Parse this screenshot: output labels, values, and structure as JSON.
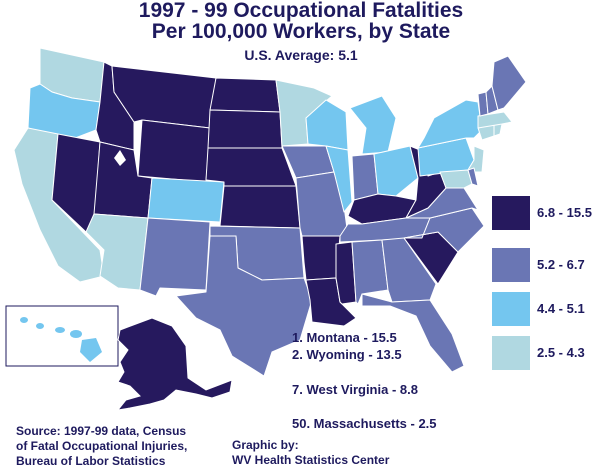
{
  "title_line1": "1997 - 99 Occupational Fatalities",
  "title_line2": "Per 100,000 Workers, by State",
  "us_average": "U.S. Average: 5.1",
  "legend": [
    {
      "label": "6.8 - 15.5",
      "color": "#26195e"
    },
    {
      "label": "5.2 - 6.7",
      "color": "#6a76b4"
    },
    {
      "label": "4.4 - 5.1",
      "color": "#74c6ef"
    },
    {
      "label": "2.5 - 4.3",
      "color": "#b0d8e1"
    }
  ],
  "rankings": [
    "1. Montana - 15.5",
    "2. Wyoming - 13.5",
    "7. West Virginia - 8.8",
    "50. Massachusetts - 2.5"
  ],
  "source": {
    "line1": "Source: 1997-99 data, Census",
    "line2": "of Fatal Occupational Injuries,",
    "line3": "Bureau of Labor Statistics"
  },
  "credit": {
    "line1": "Graphic by:",
    "line2": "WV Health Statistics Center"
  },
  "state_classes": {
    "WA": "4",
    "OR": "3",
    "CA": "4",
    "NV": "1",
    "ID": "1",
    "MT": "1",
    "WY": "1",
    "UT": "1",
    "AZ": "4",
    "CO": "3",
    "NM": "2",
    "ND": "1",
    "SD": "1",
    "NE": "1",
    "KS": "1",
    "OK": "2",
    "TX": "2",
    "MN": "4",
    "IA": "2",
    "MO": "2",
    "AR": "1",
    "LA": "1",
    "WI": "3",
    "IL": "3",
    "MI": "3",
    "IN": "2",
    "OH": "3",
    "KY": "1",
    "TN": "2",
    "MS": "1",
    "AL": "2",
    "GA": "2",
    "FL": "2",
    "SC": "1",
    "NC": "2",
    "VA": "2",
    "WV": "1",
    "PA": "3",
    "NY": "3",
    "VT": "2",
    "NH": "2",
    "ME": "2",
    "MA": "4",
    "CT": "4",
    "RI": "4",
    "NJ": "4",
    "DE": "2",
    "MD": "4",
    "AK": "1",
    "HI": "3"
  }
}
